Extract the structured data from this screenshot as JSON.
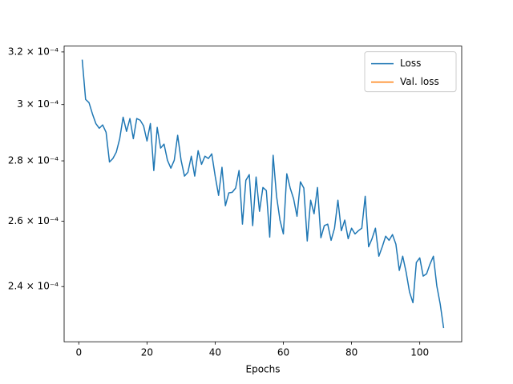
{
  "chart_data": {
    "type": "line",
    "xlabel": "Epochs",
    "x": [
      1,
      2,
      3,
      4,
      5,
      6,
      7,
      8,
      9,
      10,
      11,
      12,
      13,
      14,
      15,
      16,
      17,
      18,
      19,
      20,
      21,
      22,
      23,
      24,
      25,
      26,
      27,
      28,
      29,
      30,
      31,
      32,
      33,
      34,
      35,
      36,
      37,
      38,
      39,
      40,
      41,
      42,
      43,
      44,
      45,
      46,
      47,
      48,
      49,
      50,
      51,
      52,
      53,
      54,
      55,
      56,
      57,
      58,
      59,
      60,
      61,
      62,
      63,
      64,
      65,
      66,
      67,
      68,
      69,
      70,
      71,
      72,
      73,
      74,
      75,
      76,
      77,
      78,
      79,
      80,
      81,
      82,
      83,
      84,
      85,
      86,
      87,
      88,
      89,
      90,
      91,
      92,
      93,
      94,
      95,
      96,
      97,
      98,
      99,
      100,
      101,
      102,
      103,
      104,
      105,
      106,
      107
    ],
    "series": [
      {
        "name": "Loss",
        "color": "#1f77b4",
        "values": [
          0.000317,
          0.0003019,
          0.0003007,
          0.0002966,
          0.0002931,
          0.0002914,
          0.0002926,
          0.00029,
          0.0002796,
          0.0002808,
          0.000283,
          0.0002877,
          0.0002954,
          0.0002903,
          0.0002949,
          0.0002877,
          0.0002949,
          0.0002943,
          0.0002923,
          0.0002869,
          0.0002931,
          0.0002767,
          0.0002917,
          0.0002844,
          0.0002858,
          0.0002802,
          0.0002775,
          0.0002802,
          0.0002889,
          0.0002802,
          0.0002748,
          0.0002761,
          0.0002816,
          0.0002748,
          0.0002835,
          0.0002788,
          0.0002816,
          0.0002808,
          0.0002824,
          0.0002748,
          0.0002684,
          0.0002778,
          0.000265,
          0.0002692,
          0.0002694,
          0.0002708,
          0.0002767,
          0.0002591,
          0.0002734,
          0.0002753,
          0.0002586,
          0.0002745,
          0.0002632,
          0.000271,
          0.00027,
          0.000255,
          0.0002819,
          0.0002681,
          0.0002604,
          0.000256,
          0.0002756,
          0.0002708,
          0.0002673,
          0.0002616,
          0.0002729,
          0.0002708,
          0.0002538,
          0.0002668,
          0.0002624,
          0.000271,
          0.0002548,
          0.0002586,
          0.0002591,
          0.000254,
          0.0002578,
          0.0002668,
          0.000257,
          0.0002604,
          0.0002545,
          0.0002578,
          0.000256,
          0.000257,
          0.0002578,
          0.0002681,
          0.000252,
          0.0002545,
          0.0002578,
          0.0002491,
          0.000252,
          0.0002553,
          0.000254,
          0.0002558,
          0.0002528,
          0.0002448,
          0.0002491,
          0.0002443,
          0.0002384,
          0.0002353,
          0.0002472,
          0.0002486,
          0.0002431,
          0.0002438,
          0.0002467,
          0.0002491,
          0.0002402,
          0.0002349,
          0.0002281
        ]
      },
      {
        "name": "Val. loss",
        "color": "#ff7f0e",
        "values": [
          null,
          null,
          null,
          null,
          null,
          null,
          null,
          null,
          null,
          null,
          null,
          null,
          null,
          null,
          null,
          null,
          null,
          null,
          null,
          null,
          null,
          null,
          null,
          null,
          null,
          null,
          null,
          null,
          null,
          null,
          null,
          null,
          null,
          null,
          null,
          null,
          null,
          null,
          null,
          null,
          null,
          null,
          null,
          null,
          null,
          null,
          null,
          null,
          null,
          null,
          null,
          null,
          null,
          null,
          null,
          null,
          null,
          null,
          null,
          null,
          null,
          null,
          null,
          null,
          null,
          null,
          null,
          null,
          null,
          null,
          null,
          null,
          null,
          null,
          null,
          null,
          null,
          null,
          null,
          null,
          null,
          null,
          null,
          null,
          null,
          null,
          null,
          null,
          null,
          null,
          null,
          null,
          null,
          null,
          null,
          null,
          null,
          null,
          null,
          null,
          null,
          null,
          null,
          null,
          null,
          null,
          null
        ]
      }
    ],
    "xlim": [
      -4.3,
      112.3
    ],
    "xticks": [
      0,
      20,
      40,
      60,
      80,
      100
    ],
    "ylim": [
      0.0002243,
      0.0003223
    ],
    "yscale": "log",
    "yticks": [
      {
        "value": 0.00024,
        "label": "2.4 × 10⁻⁴"
      },
      {
        "value": 0.00026,
        "label": "2.6 × 10⁻⁴"
      },
      {
        "value": 0.00028,
        "label": "2.8 × 10⁻⁴"
      },
      {
        "value": 0.0003,
        "label": "3 × 10⁻⁴"
      },
      {
        "value": 0.00032,
        "label": "3.2 × 10⁻⁴"
      }
    ],
    "legend": "upper right"
  }
}
